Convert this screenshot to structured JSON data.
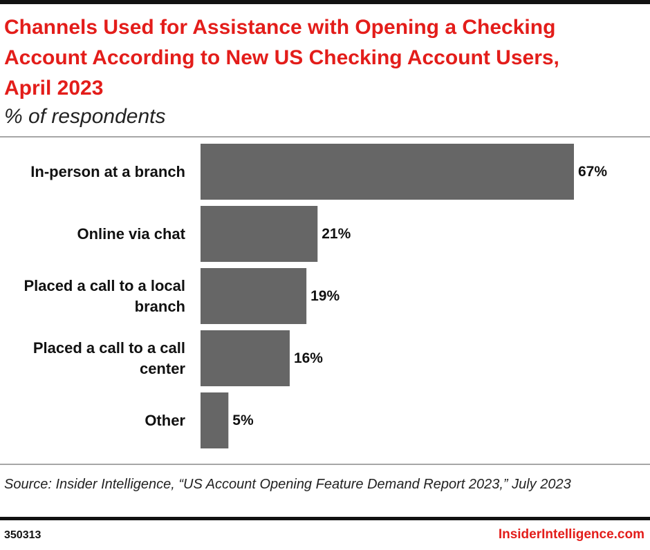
{
  "chart_data": {
    "type": "bar",
    "orientation": "horizontal",
    "title": "Channels Used for Assistance with Opening a Checking Account According to New US Checking Account Users, April 2023",
    "subtitle": "% of respondents",
    "categories": [
      "In-person at a branch",
      "Online via chat",
      "Placed a call to a local branch",
      "Placed a call to a call center",
      "Other"
    ],
    "values": [
      67,
      21,
      19,
      16,
      5
    ],
    "value_labels": [
      "67%",
      "21%",
      "19%",
      "16%",
      "5%"
    ],
    "color": "#666666",
    "source": "Source: Insider Intelligence, “US Account Opening Feature Demand Report 2023,” July 2023",
    "chart_id": "350313",
    "brand": "InsiderIntelligence.com"
  }
}
